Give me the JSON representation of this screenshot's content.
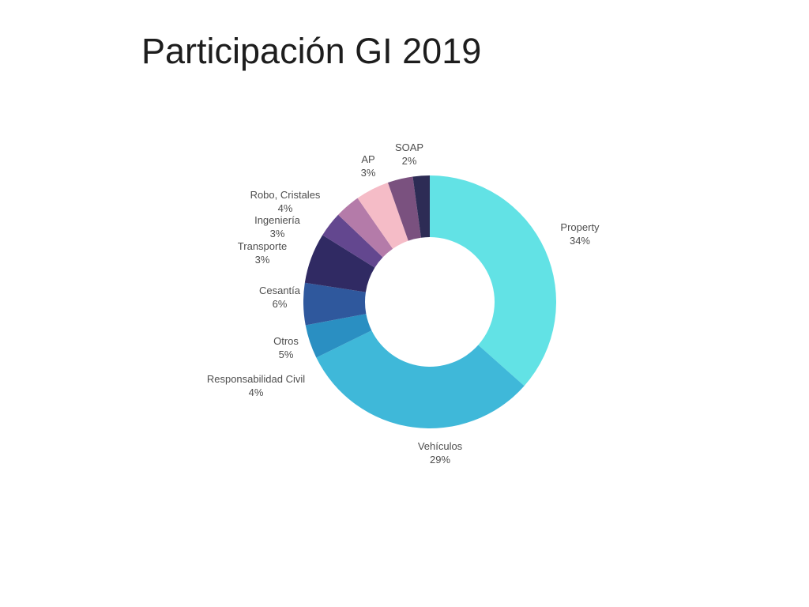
{
  "title": "Participación GI 2019",
  "page": {
    "background": "#ffffff",
    "title_color": "#1d1d1d",
    "label_color": "#4e4e4e"
  },
  "chart_data": {
    "type": "pie",
    "subtype": "donut",
    "title": "Participación GI 2019",
    "unit": "%",
    "direction": "clockwise",
    "start_angle_deg": 0,
    "inner_radius_ratio": 0.5125,
    "legend_position": "outside-radial-labels",
    "grid": false,
    "segments": [
      {
        "label": "Property",
        "value": 34,
        "pct": "34%",
        "color": "#62E2E5"
      },
      {
        "label": "Vehículos",
        "value": 29,
        "pct": "29%",
        "color": "#3FB8D9"
      },
      {
        "label": "Responsabilidad Civil",
        "value": 4,
        "pct": "4%",
        "color": "#2A8FC2"
      },
      {
        "label": "Otros",
        "value": 5,
        "pct": "5%",
        "color": "#2F589D"
      },
      {
        "label": "Cesantía",
        "value": 6,
        "pct": "6%",
        "color": "#302A63"
      },
      {
        "label": "Transporte",
        "value": 3,
        "pct": "3%",
        "color": "#63478F"
      },
      {
        "label": "Ingeniería",
        "value": 3,
        "pct": "3%",
        "color": "#B47BA9"
      },
      {
        "label": "Robo, Cristales",
        "value": 4,
        "pct": "4%",
        "color": "#F5BCC7"
      },
      {
        "label": "AP",
        "value": 3,
        "pct": "3%",
        "color": "#7A517F"
      },
      {
        "label": "SOAP",
        "value": 2,
        "pct": "2%",
        "color": "#2D2C55"
      }
    ]
  }
}
